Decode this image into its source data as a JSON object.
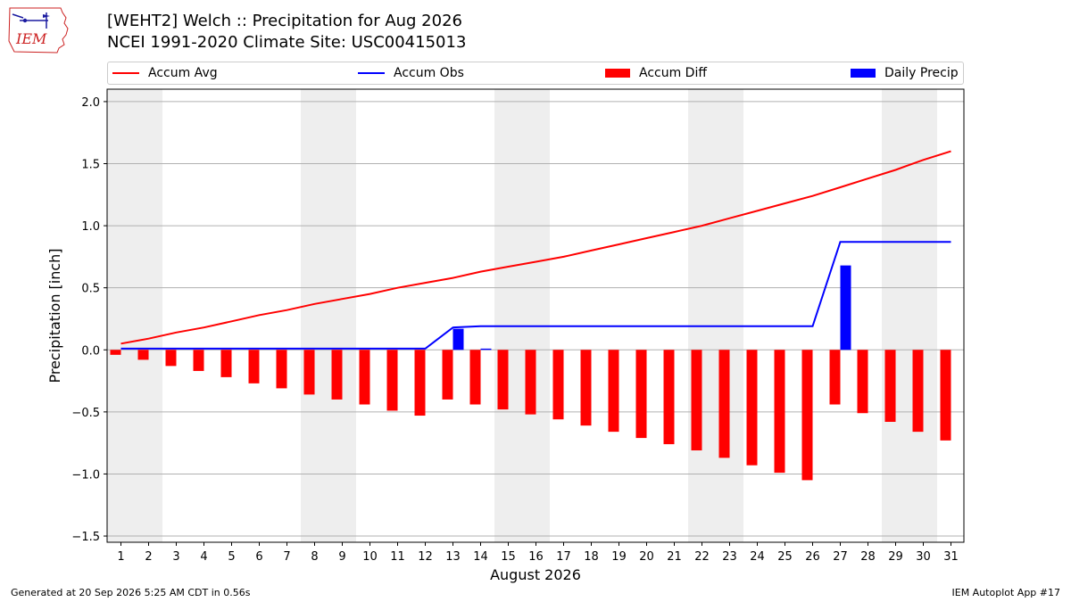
{
  "header": {
    "title_line1": "[WEHT2] Welch :: Precipitation for Aug 2026",
    "title_line2": "NCEI 1991-2020 Climate Site: USC00415013",
    "logo_text": "IEM"
  },
  "footer": {
    "generated": "Generated at 20 Sep 2026 5:25 AM CDT in 0.56s",
    "app": "IEM Autoplot App #17"
  },
  "colors": {
    "accum_avg": "#ff0000",
    "accum_obs": "#0000ff",
    "accum_diff": "#ff0000",
    "daily_precip": "#0000ff",
    "weekend_shade": "#eeeeee",
    "grid": "#b0b0b0"
  },
  "chart_data": {
    "type": "bar",
    "xlabel": "August 2026",
    "ylabel": "Precipitation [inch]",
    "ylim": [
      -1.55,
      2.1
    ],
    "yticks": [
      -1.5,
      -1.0,
      -0.5,
      0.0,
      0.5,
      1.0,
      1.5,
      2.0
    ],
    "ytick_labels": [
      "−1.5",
      "−1.0",
      "−0.5",
      "0.0",
      "0.5",
      "1.0",
      "1.5",
      "2.0"
    ],
    "grid": "horizontal",
    "legend_position": "top",
    "x": [
      1,
      2,
      3,
      4,
      5,
      6,
      7,
      8,
      9,
      10,
      11,
      12,
      13,
      14,
      15,
      16,
      17,
      18,
      19,
      20,
      21,
      22,
      23,
      24,
      25,
      26,
      27,
      28,
      29,
      30,
      31
    ],
    "shaded_days": [
      [
        1,
        2
      ],
      [
        8,
        9
      ],
      [
        15,
        16
      ],
      [
        22,
        23
      ],
      [
        29,
        30
      ]
    ],
    "series": [
      {
        "name": "Accum Avg",
        "type": "line",
        "values": [
          0.05,
          0.09,
          0.14,
          0.18,
          0.23,
          0.28,
          0.32,
          0.37,
          0.41,
          0.45,
          0.5,
          0.54,
          0.58,
          0.63,
          0.67,
          0.71,
          0.75,
          0.8,
          0.85,
          0.9,
          0.95,
          1.0,
          1.06,
          1.12,
          1.18,
          1.24,
          1.31,
          1.38,
          1.45,
          1.53,
          1.6
        ]
      },
      {
        "name": "Accum Obs",
        "type": "line",
        "values": [
          0.01,
          0.01,
          0.01,
          0.01,
          0.01,
          0.01,
          0.01,
          0.01,
          0.01,
          0.01,
          0.01,
          0.01,
          0.18,
          0.19,
          0.19,
          0.19,
          0.19,
          0.19,
          0.19,
          0.19,
          0.19,
          0.19,
          0.19,
          0.19,
          0.19,
          0.19,
          0.87,
          0.87,
          0.87,
          0.87,
          0.87
        ]
      },
      {
        "name": "Accum Diff",
        "type": "bar",
        "values": [
          -0.04,
          -0.08,
          -0.13,
          -0.17,
          -0.22,
          -0.27,
          -0.31,
          -0.36,
          -0.4,
          -0.44,
          -0.49,
          -0.53,
          -0.4,
          -0.44,
          -0.48,
          -0.52,
          -0.56,
          -0.61,
          -0.66,
          -0.71,
          -0.76,
          -0.81,
          -0.87,
          -0.93,
          -0.99,
          -1.05,
          -0.44,
          -0.51,
          -0.58,
          -0.66,
          -0.73
        ]
      },
      {
        "name": "Daily Precip",
        "type": "bar",
        "values": [
          0,
          0,
          0,
          0,
          0,
          0,
          0,
          0,
          0,
          0,
          0,
          0,
          0.17,
          0.01,
          0,
          0,
          0,
          0,
          0,
          0,
          0,
          0,
          0,
          0,
          0,
          0,
          0.68,
          0,
          0,
          0,
          0
        ]
      }
    ]
  }
}
